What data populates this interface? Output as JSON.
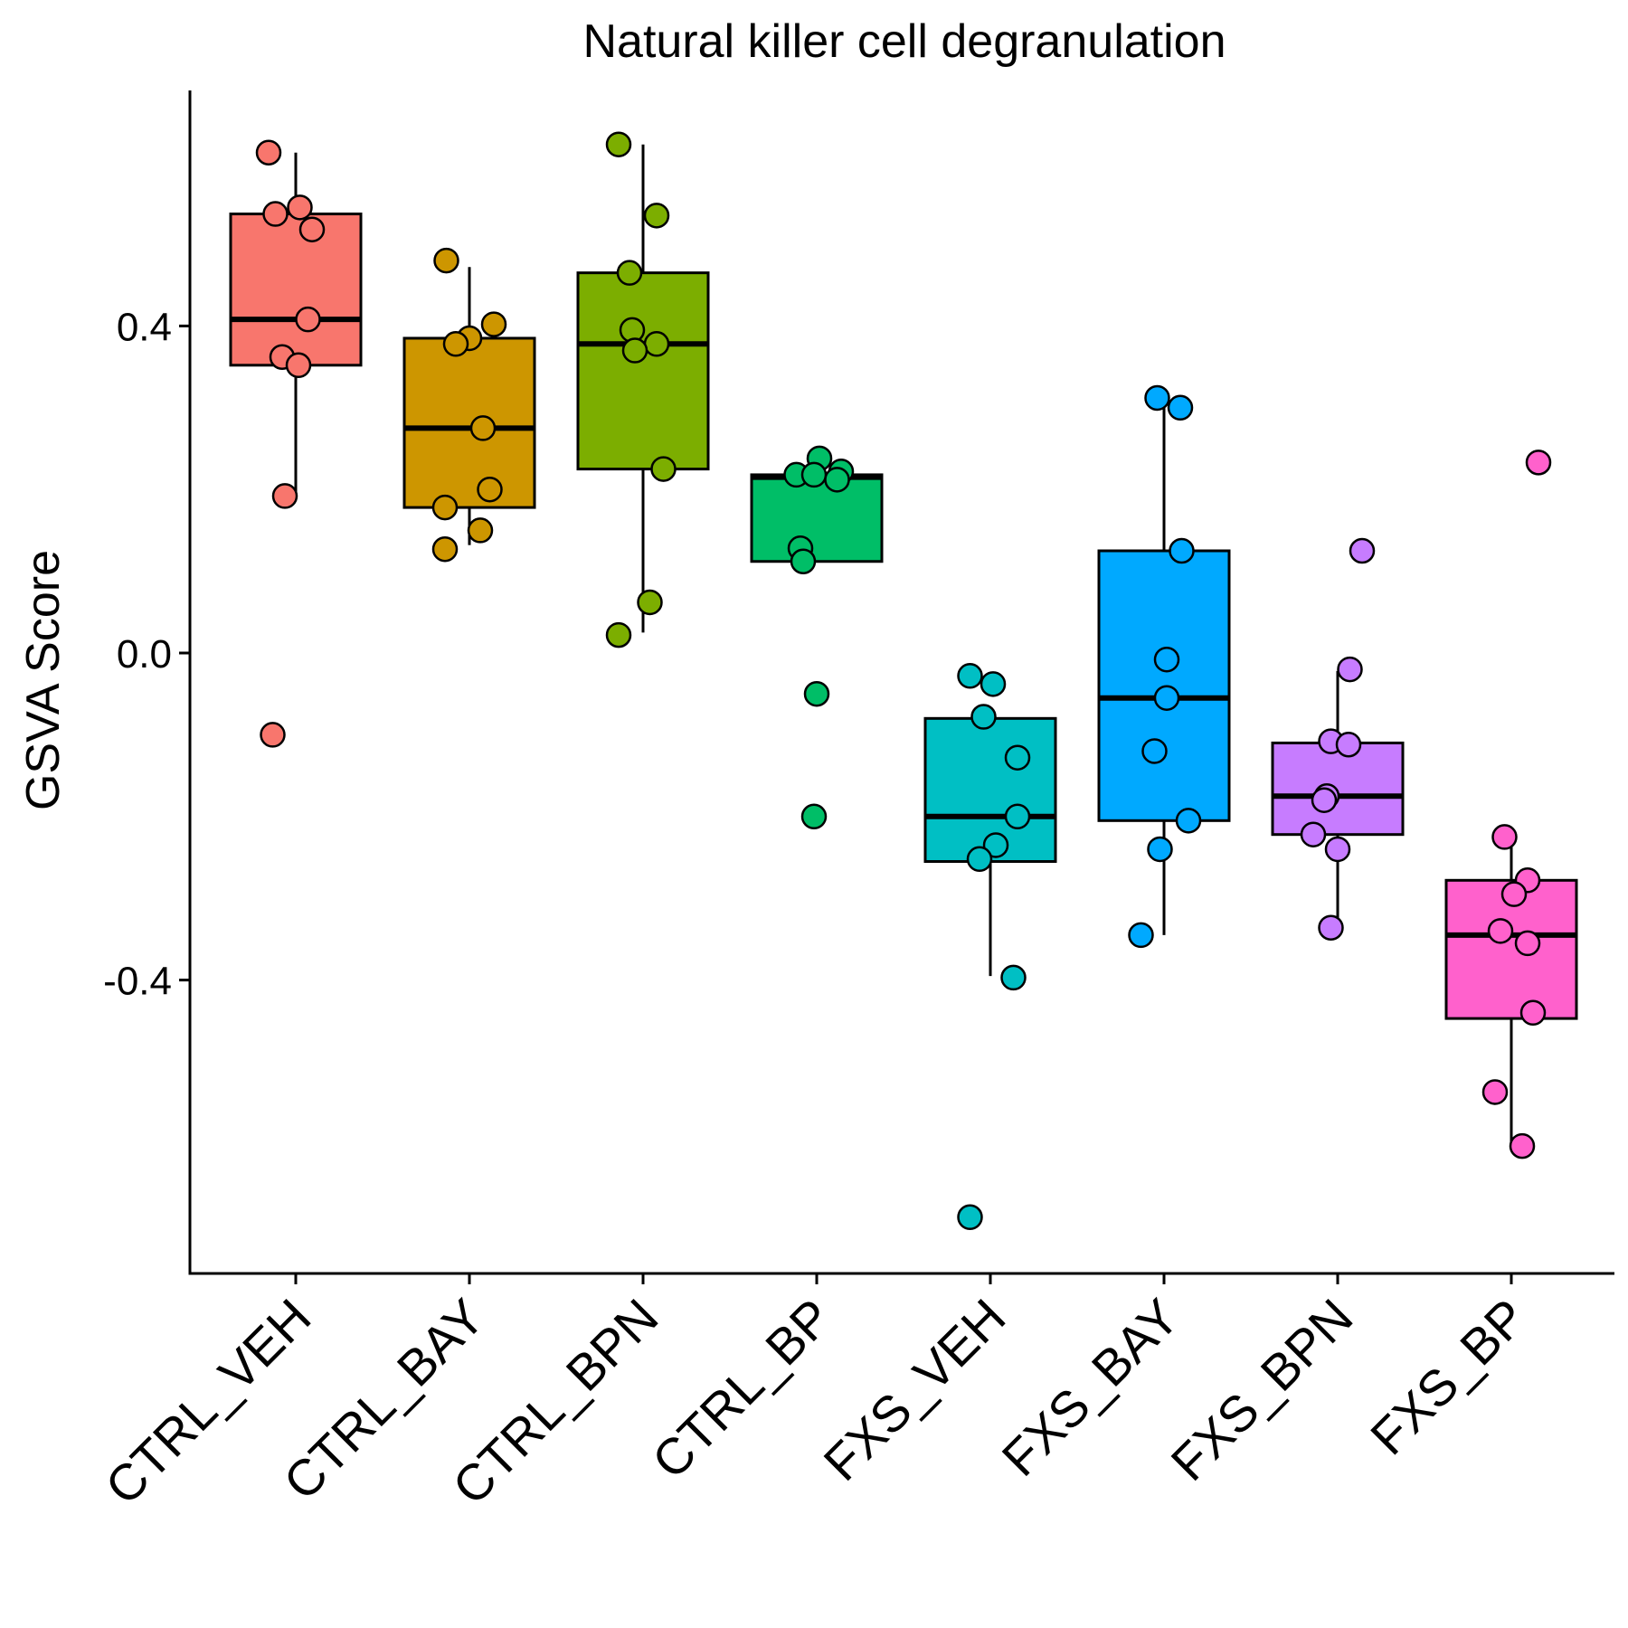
{
  "chart_data": {
    "type": "boxplot",
    "title": "Natural killer cell degranulation",
    "xlabel": "",
    "ylabel": "GSVA Score",
    "ylim": [
      -0.75,
      0.69
    ],
    "yticks": [
      -0.4,
      0.0,
      0.4
    ],
    "ytick_labels": [
      "-0.4",
      "0.0",
      "0.4"
    ],
    "categories": [
      "CTRL_VEH",
      "CTRL_BAY",
      "CTRL_BPN",
      "CTRL_BP",
      "FXS_VEH",
      "FXS_BAY",
      "FXS_BPN",
      "FXS_BP"
    ],
    "colors": [
      "#F8766D",
      "#CD9600",
      "#7CAE00",
      "#00BE67",
      "#00BFC4",
      "#00A9FF",
      "#C77CFF",
      "#FF61CC"
    ],
    "grid": false,
    "legend": "none",
    "series": [
      {
        "category": "CTRL_VEH",
        "q1": 0.352,
        "median": 0.408,
        "q3": 0.537,
        "whisker_low": 0.192,
        "whisker_high": 0.612,
        "points": [
          {
            "x": -0.2,
            "y": 0.612
          },
          {
            "x": -0.15,
            "y": 0.537
          },
          {
            "x": 0.03,
            "y": 0.545
          },
          {
            "x": 0.12,
            "y": 0.518
          },
          {
            "x": 0.09,
            "y": 0.408
          },
          {
            "x": -0.1,
            "y": 0.362
          },
          {
            "x": 0.02,
            "y": 0.352
          },
          {
            "x": -0.08,
            "y": 0.192
          },
          {
            "x": -0.17,
            "y": -0.1
          }
        ]
      },
      {
        "category": "CTRL_BAY",
        "q1": 0.178,
        "median": 0.275,
        "q3": 0.385,
        "whisker_low": 0.132,
        "whisker_high": 0.472,
        "points": [
          {
            "x": -0.17,
            "y": 0.48
          },
          {
            "x": 0.18,
            "y": 0.402
          },
          {
            "x": 0.0,
            "y": 0.385
          },
          {
            "x": -0.1,
            "y": 0.378
          },
          {
            "x": 0.1,
            "y": 0.275
          },
          {
            "x": 0.15,
            "y": 0.2
          },
          {
            "x": -0.18,
            "y": 0.178
          },
          {
            "x": 0.08,
            "y": 0.15
          },
          {
            "x": -0.18,
            "y": 0.127
          }
        ]
      },
      {
        "category": "CTRL_BPN",
        "q1": 0.225,
        "median": 0.378,
        "q3": 0.465,
        "whisker_low": 0.025,
        "whisker_high": 0.622,
        "points": [
          {
            "x": -0.18,
            "y": 0.622
          },
          {
            "x": 0.1,
            "y": 0.535
          },
          {
            "x": -0.1,
            "y": 0.465
          },
          {
            "x": -0.08,
            "y": 0.395
          },
          {
            "x": 0.1,
            "y": 0.378
          },
          {
            "x": -0.06,
            "y": 0.37
          },
          {
            "x": 0.15,
            "y": 0.225
          },
          {
            "x": 0.05,
            "y": 0.062
          },
          {
            "x": -0.18,
            "y": 0.022
          }
        ]
      },
      {
        "category": "CTRL_BP",
        "q1": 0.112,
        "median": 0.215,
        "q3": 0.218,
        "whisker_low": 0.112,
        "whisker_high": 0.218,
        "points": [
          {
            "x": 0.02,
            "y": 0.238
          },
          {
            "x": 0.18,
            "y": 0.222
          },
          {
            "x": -0.15,
            "y": 0.218
          },
          {
            "x": -0.02,
            "y": 0.218
          },
          {
            "x": 0.15,
            "y": 0.212
          },
          {
            "x": -0.12,
            "y": 0.128
          },
          {
            "x": -0.1,
            "y": 0.112
          },
          {
            "x": 0.0,
            "y": -0.05
          },
          {
            "x": -0.02,
            "y": -0.2
          }
        ]
      },
      {
        "category": "FXS_VEH",
        "q1": -0.255,
        "median": -0.2,
        "q3": -0.08,
        "whisker_low": -0.395,
        "whisker_high": -0.08,
        "points": [
          {
            "x": -0.15,
            "y": -0.028
          },
          {
            "x": 0.02,
            "y": -0.038
          },
          {
            "x": -0.05,
            "y": -0.078
          },
          {
            "x": 0.2,
            "y": -0.128
          },
          {
            "x": 0.2,
            "y": -0.2
          },
          {
            "x": 0.04,
            "y": -0.235
          },
          {
            "x": -0.08,
            "y": -0.252
          },
          {
            "x": 0.17,
            "y": -0.397
          },
          {
            "x": -0.15,
            "y": -0.69
          }
        ]
      },
      {
        "category": "FXS_BAY",
        "q1": -0.205,
        "median": -0.055,
        "q3": 0.125,
        "whisker_low": -0.345,
        "whisker_high": 0.3,
        "points": [
          {
            "x": -0.05,
            "y": 0.312
          },
          {
            "x": 0.12,
            "y": 0.3
          },
          {
            "x": 0.13,
            "y": 0.125
          },
          {
            "x": 0.02,
            "y": -0.008
          },
          {
            "x": 0.02,
            "y": -0.055
          },
          {
            "x": -0.07,
            "y": -0.12
          },
          {
            "x": 0.18,
            "y": -0.205
          },
          {
            "x": -0.03,
            "y": -0.24
          },
          {
            "x": -0.17,
            "y": -0.345
          }
        ]
      },
      {
        "category": "FXS_BPN",
        "q1": -0.222,
        "median": -0.175,
        "q3": -0.11,
        "whisker_low": -0.33,
        "whisker_high": -0.022,
        "points": [
          {
            "x": 0.18,
            "y": 0.125
          },
          {
            "x": 0.09,
            "y": -0.02
          },
          {
            "x": -0.05,
            "y": -0.108
          },
          {
            "x": 0.08,
            "y": -0.112
          },
          {
            "x": -0.08,
            "y": -0.175
          },
          {
            "x": -0.1,
            "y": -0.18
          },
          {
            "x": -0.18,
            "y": -0.222
          },
          {
            "x": 0.0,
            "y": -0.24
          },
          {
            "x": -0.05,
            "y": -0.336
          }
        ]
      },
      {
        "category": "FXS_BP",
        "q1": -0.447,
        "median": -0.345,
        "q3": -0.278,
        "whisker_low": -0.602,
        "whisker_high": -0.225,
        "points": [
          {
            "x": 0.2,
            "y": 0.233
          },
          {
            "x": -0.05,
            "y": -0.225
          },
          {
            "x": 0.12,
            "y": -0.278
          },
          {
            "x": 0.02,
            "y": -0.295
          },
          {
            "x": -0.08,
            "y": -0.34
          },
          {
            "x": 0.12,
            "y": -0.355
          },
          {
            "x": 0.16,
            "y": -0.44
          },
          {
            "x": -0.12,
            "y": -0.537
          },
          {
            "x": 0.08,
            "y": -0.603
          }
        ]
      }
    ]
  }
}
